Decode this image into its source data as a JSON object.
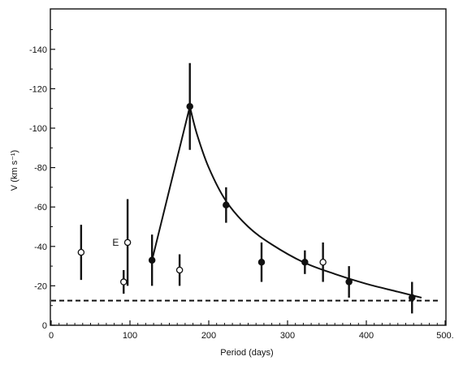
{
  "chart_data": {
    "type": "scatter",
    "xlabel": "Period (days)",
    "ylabel": "V (km s⁻¹)",
    "xlim": [
      0,
      500
    ],
    "ylim": [
      0,
      -160
    ],
    "y_direction": "negative values plotted upward",
    "x_ticks": [
      0,
      100,
      200,
      300,
      400,
      500
    ],
    "x_tick_labels": [
      "0",
      "100",
      "200",
      "300",
      "400",
      "500."
    ],
    "y_ticks": [
      0,
      -20,
      -40,
      -60,
      -80,
      -100,
      -120,
      -140
    ],
    "y_tick_labels": [
      "0",
      "-20",
      "-40",
      "-60",
      "-80",
      "-100",
      "-120",
      "-140"
    ],
    "grid": false,
    "series": [
      {
        "marker": "filled-circle",
        "points": [
          {
            "x": 128,
            "y": -33,
            "err": 13
          },
          {
            "x": 176,
            "y": -111,
            "err": 22
          },
          {
            "x": 222,
            "y": -61,
            "err": 9
          },
          {
            "x": 267,
            "y": -32,
            "err": 10
          },
          {
            "x": 322,
            "y": -32,
            "err": 6
          },
          {
            "x": 378,
            "y": -22,
            "err": 8
          },
          {
            "x": 458,
            "y": -14,
            "err": 8
          }
        ]
      },
      {
        "marker": "open-circle",
        "points": [
          {
            "x": 38,
            "y": -37,
            "err": 14
          },
          {
            "x": 92,
            "y": -22,
            "err": 6
          },
          {
            "x": 97,
            "y": -42,
            "err": 22
          },
          {
            "x": 163,
            "y": -28,
            "err": 8
          },
          {
            "x": 345,
            "y": -32,
            "err": 10
          }
        ]
      }
    ],
    "fit_curve": {
      "style": "solid",
      "points": [
        [
          128,
          -33
        ],
        [
          176,
          -111
        ],
        [
          185,
          -97
        ],
        [
          200,
          -80
        ],
        [
          222,
          -63
        ],
        [
          250,
          -50
        ],
        [
          280,
          -41
        ],
        [
          320,
          -32
        ],
        [
          360,
          -26
        ],
        [
          400,
          -21
        ],
        [
          440,
          -17
        ],
        [
          470,
          -14
        ]
      ]
    },
    "baseline": {
      "style": "dashed",
      "y": -12.5,
      "x_range": [
        0,
        495
      ]
    },
    "annotations": [
      {
        "text": "E",
        "x": 86,
        "y": -42
      }
    ]
  }
}
